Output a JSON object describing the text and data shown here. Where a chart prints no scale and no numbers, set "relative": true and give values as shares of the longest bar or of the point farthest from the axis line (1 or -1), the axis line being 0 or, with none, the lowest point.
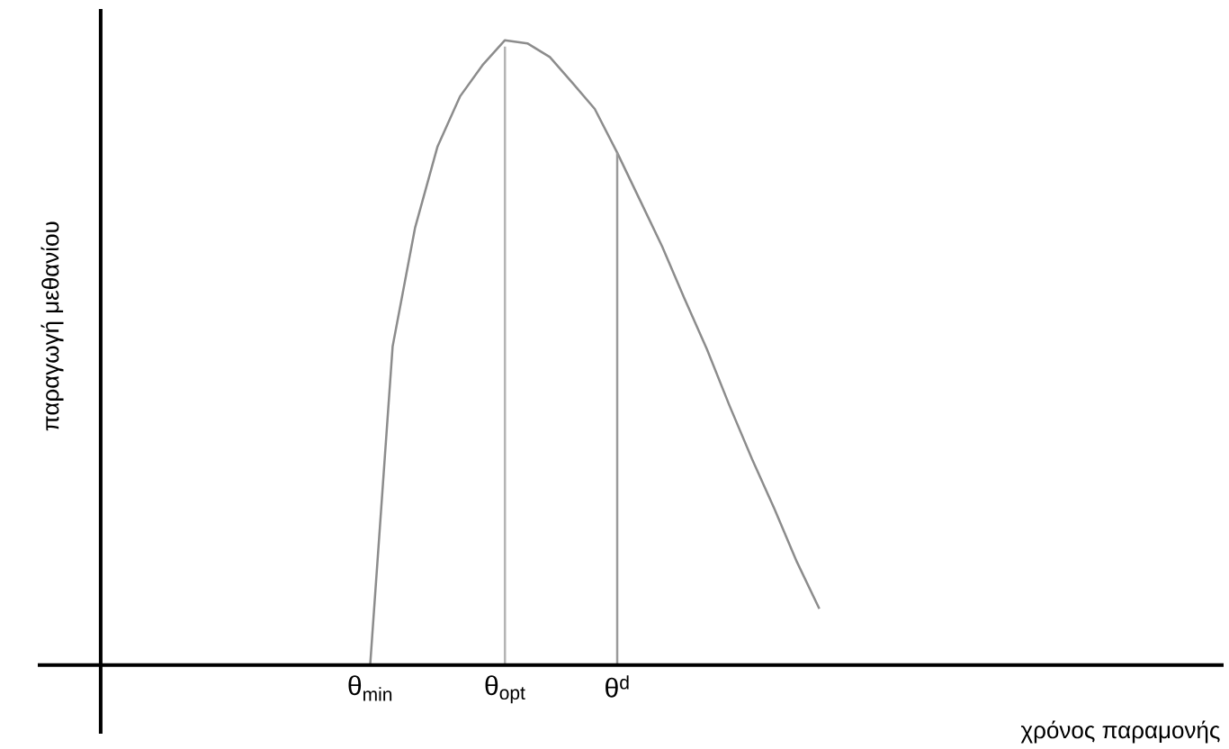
{
  "chart_data": {
    "type": "line",
    "relative": true,
    "xlabel": "χρόνος παραμονής",
    "ylabel": "παραγωγή μεθανίου",
    "categories": [
      null,
      null,
      null,
      null,
      null,
      null,
      null,
      null,
      null,
      null,
      null,
      null,
      "θ$_{min}$",
      null,
      null,
      null,
      null,
      null,
      "θ$_{opt}$",
      null,
      null,
      null,
      null,
      "θ$^{d}$",
      null,
      null,
      null,
      null,
      null,
      null,
      null,
      null,
      null,
      null,
      null,
      null,
      null,
      null,
      null,
      null,
      null,
      null,
      null,
      null,
      null,
      null,
      null,
      null,
      null,
      null,
      null
    ],
    "series": [
      {
        "color": "#8c8c8c",
        "values": [
          null,
          null,
          null,
          null,
          null,
          null,
          null,
          null,
          null,
          null,
          null,
          null,
          0,
          0.51,
          0.7,
          0.83,
          0.91,
          0.96,
          1,
          0.995,
          0.973,
          0.932,
          0.89,
          0.82,
          0.745,
          0.67,
          0.586,
          0.505,
          0.415,
          0.33,
          0.25,
          0.165,
          0.09,
          null,
          null,
          null,
          null,
          null,
          null,
          null,
          null,
          null,
          null,
          null,
          null,
          null,
          null,
          null,
          null,
          null,
          null
        ]
      },
      {
        "type": "bar",
        "color": "#b4b4b4",
        "values": [
          null,
          null,
          null,
          null,
          null,
          null,
          null,
          null,
          null,
          null,
          null,
          null,
          null,
          null,
          null,
          null,
          null,
          null,
          0.99,
          null,
          null,
          null,
          null,
          null,
          null,
          null,
          null,
          null,
          null,
          null,
          null,
          null,
          null,
          null,
          null,
          null,
          null,
          null,
          null,
          null,
          null,
          null,
          null,
          null,
          null,
          null,
          null,
          null,
          null,
          null,
          null
        ]
      },
      {
        "type": "bar",
        "color": "#9a9a9a",
        "values": [
          null,
          null,
          null,
          null,
          null,
          null,
          null,
          null,
          null,
          null,
          null,
          null,
          null,
          null,
          null,
          null,
          null,
          null,
          null,
          null,
          null,
          null,
          null,
          0.82,
          null,
          null,
          null,
          null,
          null,
          null,
          null,
          null,
          null,
          null,
          null,
          null,
          null,
          null,
          null,
          null,
          null,
          null,
          null,
          null,
          null,
          null,
          null,
          null,
          null,
          null,
          null
        ]
      }
    ]
  }
}
